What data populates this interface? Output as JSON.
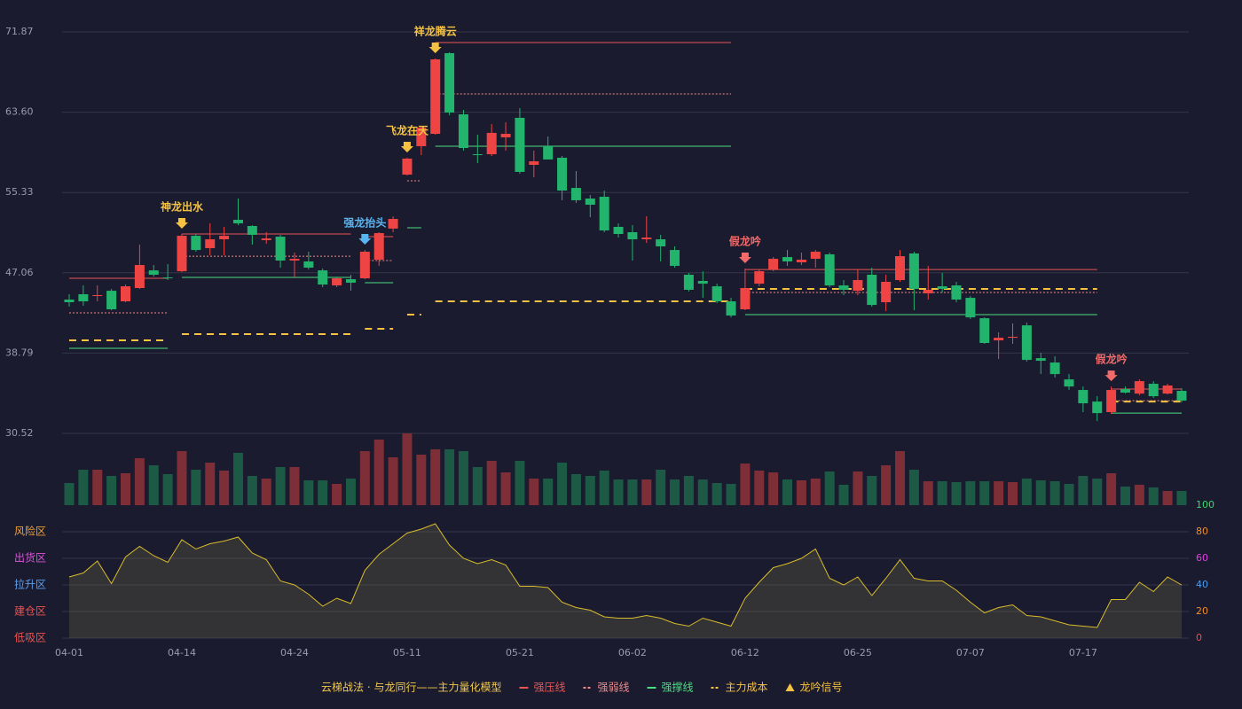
{
  "chart_data": [
    {
      "type": "candlestick",
      "categories": [
        "04-01",
        null,
        null,
        null,
        null,
        null,
        null,
        null,
        "04-14",
        null,
        null,
        null,
        null,
        null,
        null,
        null,
        "04-24",
        null,
        null,
        null,
        null,
        null,
        null,
        null,
        "05-11",
        null,
        null,
        null,
        null,
        null,
        null,
        null,
        "05-21",
        null,
        null,
        null,
        null,
        null,
        null,
        null,
        "06-02",
        null,
        null,
        null,
        null,
        null,
        null,
        null,
        "06-12",
        null,
        null,
        null,
        null,
        null,
        null,
        null,
        "06-25",
        null,
        null,
        null,
        null,
        null,
        null,
        null,
        "07-07",
        null,
        null,
        null,
        null,
        null,
        null,
        null,
        "07-17",
        null,
        null,
        null,
        null,
        null,
        null,
        null
      ],
      "candles": [
        [
          44.3,
          44.85,
          43.57,
          44.03
        ],
        [
          44.85,
          45.76,
          43.66,
          44.12
        ],
        [
          44.67,
          45.76,
          44.12,
          44.76
        ],
        [
          45.21,
          45.4,
          43.2,
          43.3
        ],
        [
          44.12,
          45.85,
          44.03,
          45.67
        ],
        [
          45.49,
          49.96,
          45.4,
          47.86
        ],
        [
          47.31,
          47.86,
          46.67,
          46.86
        ],
        [
          46.58,
          47.95,
          46.31,
          46.49
        ],
        [
          47.22,
          51.06,
          47.13,
          50.87
        ],
        [
          50.87,
          51.06,
          49.23,
          49.41
        ],
        [
          49.6,
          52.15,
          48.87,
          50.51
        ],
        [
          50.51,
          51.79,
          48.87,
          50.87
        ],
        [
          52.52,
          54.71,
          51.97,
          52.15
        ],
        [
          51.88,
          51.97,
          49.96,
          50.97
        ],
        [
          50.42,
          51.24,
          50.05,
          50.6
        ],
        [
          50.78,
          50.97,
          47.59,
          48.32
        ],
        [
          48.32,
          49.14,
          46.58,
          48.5
        ],
        [
          48.23,
          49.23,
          47.4,
          47.59
        ],
        [
          47.31,
          47.5,
          45.58,
          45.85
        ],
        [
          45.76,
          46.67,
          45.58,
          46.49
        ],
        [
          46.4,
          46.86,
          45.21,
          46.04
        ],
        [
          46.49,
          49.41,
          46.4,
          49.23
        ],
        [
          48.41,
          51.24,
          47.77,
          51.15
        ],
        [
          51.61,
          52.88,
          51.24,
          52.61
        ],
        [
          57.17,
          58.91,
          57.08,
          58.82
        ],
        [
          60.1,
          62.1,
          59.18,
          62.01
        ],
        [
          61.37,
          69.13,
          61.28,
          69.04
        ],
        [
          69.68,
          69.77,
          63.29,
          63.56
        ],
        [
          63.38,
          63.84,
          59.64,
          59.91
        ],
        [
          59.27,
          61.28,
          58.36,
          59.18
        ],
        [
          59.27,
          62.38,
          59.09,
          61.47
        ],
        [
          61.01,
          62.56,
          59.64,
          61.37
        ],
        [
          63.02,
          64.02,
          57.27,
          57.45
        ],
        [
          58.18,
          59.64,
          56.9,
          58.54
        ],
        [
          60.1,
          61.1,
          58.73,
          58.73
        ],
        [
          58.91,
          59.09,
          54.53,
          55.53
        ],
        [
          55.8,
          57.54,
          54.25,
          54.53
        ],
        [
          54.71,
          55.07,
          52.79,
          54.07
        ],
        [
          54.89,
          55.53,
          51.24,
          51.42
        ],
        [
          51.79,
          52.15,
          50.69,
          51.06
        ],
        [
          51.24,
          51.97,
          48.32,
          50.51
        ],
        [
          50.51,
          52.88,
          50.14,
          50.69
        ],
        [
          50.51,
          50.97,
          48.23,
          49.78
        ],
        [
          49.41,
          49.78,
          47.59,
          47.77
        ],
        [
          46.86,
          47.04,
          45.12,
          45.31
        ],
        [
          46.22,
          47.22,
          44.48,
          45.94
        ],
        [
          45.67,
          45.94,
          43.93,
          44.12
        ],
        [
          44.12,
          44.48,
          42.47,
          42.66
        ],
        [
          43.3,
          47.5,
          43.2,
          45.49
        ],
        [
          45.94,
          47.4,
          45.67,
          47.22
        ],
        [
          47.4,
          48.68,
          47.22,
          48.5
        ],
        [
          48.68,
          49.41,
          47.77,
          48.23
        ],
        [
          48.14,
          49.14,
          47.86,
          48.41
        ],
        [
          48.5,
          49.41,
          47.59,
          49.23
        ],
        [
          48.96,
          49.14,
          45.58,
          45.76
        ],
        [
          45.76,
          46.31,
          44.76,
          45.31
        ],
        [
          45.21,
          47.4,
          44.76,
          46.31
        ],
        [
          46.86,
          47.59,
          43.57,
          43.75
        ],
        [
          44.03,
          46.86,
          43.11,
          46.13
        ],
        [
          46.31,
          49.41,
          46.13,
          48.77
        ],
        [
          49.05,
          49.23,
          43.2,
          45.4
        ],
        [
          44.94,
          47.77,
          44.3,
          45.31
        ],
        [
          45.67,
          47.04,
          45.03,
          45.4
        ],
        [
          45.76,
          46.13,
          44.03,
          44.3
        ],
        [
          44.48,
          44.67,
          42.29,
          42.47
        ],
        [
          42.38,
          42.47,
          39.74,
          39.83
        ],
        [
          40.1,
          40.92,
          38.18,
          40.37
        ],
        [
          40.37,
          41.84,
          39.74,
          40.47
        ],
        [
          41.65,
          41.93,
          37.91,
          38.09
        ],
        [
          38.27,
          38.82,
          36.63,
          38.0
        ],
        [
          37.82,
          38.46,
          36.27,
          36.63
        ],
        [
          36.08,
          36.63,
          34.99,
          35.35
        ],
        [
          34.99,
          35.35,
          32.71,
          33.62
        ],
        [
          33.8,
          34.35,
          31.79,
          32.61
        ],
        [
          32.71,
          35.35,
          32.52,
          34.99
        ],
        [
          35.08,
          35.35,
          34.62,
          34.72
        ],
        [
          34.62,
          36.08,
          34.44,
          35.9
        ],
        [
          35.63,
          35.9,
          34.17,
          34.35
        ],
        [
          34.62,
          35.63,
          34.53,
          35.45
        ],
        [
          34.9,
          35.17,
          33.71,
          33.89
        ]
      ],
      "up_color": "#ef4444",
      "down_color": "#22b36c",
      "ylim": [
        30.52,
        71.87
      ],
      "yticks": [
        30.52,
        38.79,
        47.06,
        55.33,
        {
          "value": 63.6,
          "label": "63.60"
        },
        71.87
      ],
      "grid": true,
      "levels": [
        {
          "name": "强压线",
          "color": "#e85555",
          "dash": "none",
          "width": 1,
          "segments": [
            {
              "from": 0,
              "to": 7,
              "value": 46.49
            },
            {
              "from": 8,
              "to": 20,
              "value": 51.06
            },
            {
              "from": 21,
              "to": 23,
              "value": 50.78
            },
            {
              "from": 24,
              "to": 25,
              "value": 61.28
            },
            {
              "from": 26,
              "to": 47,
              "value": 70.77
            },
            {
              "from": 48,
              "to": 73,
              "value": 47.4
            },
            {
              "from": 74,
              "to": 79,
              "value": 35.08
            }
          ]
        },
        {
          "name": "强弱线",
          "color": "#f08a8a",
          "dash": "2,2",
          "width": 1,
          "segments": [
            {
              "from": 0,
              "to": 7,
              "value": 42.93
            },
            {
              "from": 8,
              "to": 20,
              "value": 48.77
            },
            {
              "from": 21,
              "to": 23,
              "value": 48.32
            },
            {
              "from": 24,
              "to": 25,
              "value": 56.54
            },
            {
              "from": 26,
              "to": 47,
              "value": 65.48
            },
            {
              "from": 48,
              "to": 73,
              "value": 45.03
            },
            {
              "from": 74,
              "to": 79,
              "value": 33.89
            }
          ]
        },
        {
          "name": "强撑线",
          "color": "#4ade80",
          "dash": "none",
          "width": 1,
          "segments": [
            {
              "from": 0,
              "to": 7,
              "value": 39.28
            },
            {
              "from": 8,
              "to": 20,
              "value": 46.58
            },
            {
              "from": 21,
              "to": 23,
              "value": 46.04
            },
            {
              "from": 24,
              "to": 25,
              "value": 51.7
            },
            {
              "from": 26,
              "to": 47,
              "value": 60.1
            },
            {
              "from": 48,
              "to": 73,
              "value": 42.75
            },
            {
              "from": 74,
              "to": 79,
              "value": 32.61
            }
          ]
        },
        {
          "name": "主力成本",
          "color": "#f5c242",
          "dash": "8,6",
          "width": 2,
          "segments": [
            {
              "from": 0,
              "to": 7,
              "value": 40.1
            },
            {
              "from": 8,
              "to": 20,
              "value": 40.74
            },
            {
              "from": 21,
              "to": 23,
              "value": 41.29
            },
            {
              "from": 24,
              "to": 25,
              "value": 42.75
            },
            {
              "from": 26,
              "to": 47,
              "value": 44.12
            },
            {
              "from": 48,
              "to": 73,
              "value": 45.4
            },
            {
              "from": 74,
              "to": 79,
              "value": 33.8
            }
          ]
        }
      ],
      "signals_name": "龙吟信号",
      "signals_color": "#f5c242",
      "signals": [
        {
          "label": "神龙出水",
          "index": 8,
          "color": "#f5c242"
        },
        {
          "label": "强龙抬头",
          "index": 21,
          "color": "#5ab4f0"
        },
        {
          "label": "飞龙在天",
          "index": 24,
          "color": "#f5c242"
        },
        {
          "label": "祥龙腾云",
          "index": 26,
          "color": "#f5c242"
        },
        {
          "label": "假龙吟",
          "index": 48,
          "color": "#f26a6a"
        },
        {
          "label": "假龙吟",
          "index": 74,
          "color": "#f26a6a"
        }
      ],
      "legend_title": "云梯战法 · 与龙同行——主力量化模型",
      "legend_title_color": "#f0c850"
    },
    {
      "type": "bar",
      "values": [
        25,
        40,
        40,
        33,
        36,
        53,
        45,
        35,
        61,
        40,
        48,
        39,
        59,
        33,
        30,
        43,
        43,
        28,
        28,
        24,
        30,
        61,
        74,
        54,
        81,
        57,
        63,
        63,
        61,
        43,
        50,
        37,
        50,
        30,
        30,
        48,
        35,
        33,
        39,
        29,
        29,
        29,
        40,
        29,
        33,
        29,
        25,
        24,
        47,
        39,
        37,
        29,
        28,
        30,
        38,
        23,
        38,
        33,
        45,
        61,
        40,
        27,
        27,
        26,
        27,
        27,
        27,
        26,
        30,
        28,
        27,
        24,
        33,
        30,
        36,
        21,
        23,
        20,
        16,
        16
      ],
      "up_color": "#7e2e36",
      "down_color": "#1d5a45"
    },
    {
      "type": "area",
      "values": [
        46,
        49,
        58,
        41,
        61,
        69,
        62,
        57,
        74,
        67,
        71,
        73,
        76,
        64,
        59,
        43,
        40,
        33,
        24,
        30,
        26,
        51,
        63,
        71,
        79,
        82,
        86,
        70,
        60,
        56,
        59,
        55,
        39,
        39,
        38,
        27,
        23,
        21,
        16,
        15,
        15,
        17,
        15,
        11,
        9,
        15,
        12,
        9,
        30,
        42,
        53,
        56,
        60,
        67,
        45,
        40,
        46,
        32,
        45,
        59,
        45,
        43,
        43,
        36,
        27,
        19,
        23,
        25,
        17,
        16,
        13,
        10,
        9,
        8,
        29,
        29,
        42,
        35,
        46,
        40
      ],
      "color": "#d8bc2c",
      "ylim": [
        0,
        100
      ],
      "yticks": [
        0,
        20,
        40,
        60,
        80,
        100
      ],
      "ytick_colors": [
        "#f04a4a",
        "#f08c2a",
        "#4a9cf0",
        "#e040e0",
        "#f08c2a",
        "#3ad86a"
      ],
      "zones": [
        {
          "label": "风险区",
          "value": 80,
          "color": "#f0a030"
        },
        {
          "label": "出货区",
          "value": 60,
          "color": "#e050e0"
        },
        {
          "label": "拉升区",
          "value": 40,
          "color": "#5aa0f0"
        },
        {
          "label": "建仓区",
          "value": 20,
          "color": "#f05050"
        },
        {
          "label": "低吸区",
          "value": 0,
          "color": "#f05050"
        }
      ]
    }
  ]
}
